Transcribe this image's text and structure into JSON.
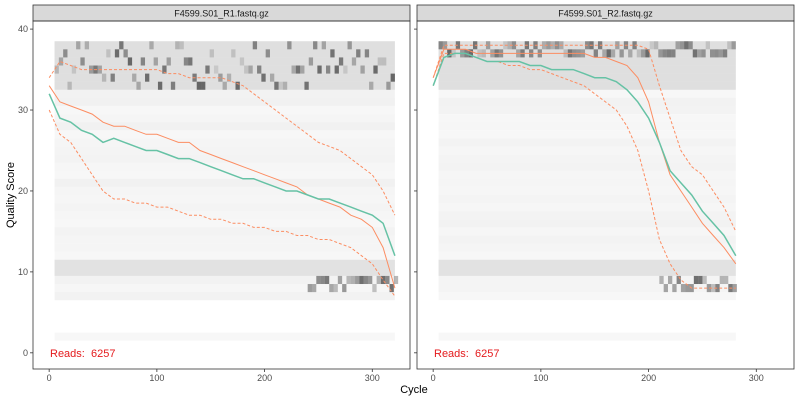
{
  "chart_data": {
    "type": "heatmap",
    "xlabel": "Cycle",
    "ylabel": "Quality Score",
    "xlim": [
      -15,
      335
    ],
    "ylim": [
      -2,
      41
    ],
    "x_ticks": [
      0,
      100,
      200,
      300
    ],
    "y_ticks": [
      0,
      10,
      20,
      30,
      40
    ],
    "colors": {
      "mean": "#66c2a5",
      "quartiles": "#fc8d62",
      "reads": "#e41a1c",
      "strip_fill": "#d9d9d9"
    },
    "panels": [
      {
        "title": "F4599.S01_R1.fastq.gz",
        "reads_label": "Reads:",
        "reads_value": "6257",
        "max_cycle": 321,
        "mean_quality": [
          [
            0,
            32
          ],
          [
            10,
            29
          ],
          [
            20,
            28.5
          ],
          [
            30,
            27.5
          ],
          [
            40,
            27
          ],
          [
            50,
            26
          ],
          [
            60,
            26.5
          ],
          [
            70,
            26
          ],
          [
            80,
            25.5
          ],
          [
            90,
            25
          ],
          [
            100,
            25
          ],
          [
            110,
            24.5
          ],
          [
            120,
            24
          ],
          [
            130,
            24
          ],
          [
            140,
            23.5
          ],
          [
            150,
            23
          ],
          [
            160,
            22.5
          ],
          [
            170,
            22
          ],
          [
            180,
            21.5
          ],
          [
            190,
            21.5
          ],
          [
            200,
            21
          ],
          [
            210,
            20.5
          ],
          [
            220,
            20
          ],
          [
            230,
            20
          ],
          [
            240,
            19.5
          ],
          [
            250,
            19
          ],
          [
            260,
            19
          ],
          [
            270,
            18.5
          ],
          [
            280,
            18
          ],
          [
            290,
            17.5
          ],
          [
            300,
            17
          ],
          [
            310,
            16
          ],
          [
            321,
            12
          ]
        ],
        "median_quality": [
          [
            0,
            33
          ],
          [
            10,
            31
          ],
          [
            20,
            30.5
          ],
          [
            30,
            30
          ],
          [
            40,
            29.5
          ],
          [
            50,
            28.5
          ],
          [
            60,
            28
          ],
          [
            70,
            28
          ],
          [
            80,
            27.5
          ],
          [
            90,
            27
          ],
          [
            100,
            27
          ],
          [
            110,
            26.5
          ],
          [
            120,
            26
          ],
          [
            130,
            26
          ],
          [
            140,
            25
          ],
          [
            150,
            24.5
          ],
          [
            160,
            24
          ],
          [
            170,
            23.5
          ],
          [
            180,
            23
          ],
          [
            190,
            22.5
          ],
          [
            200,
            22
          ],
          [
            210,
            21.5
          ],
          [
            220,
            21
          ],
          [
            230,
            20.5
          ],
          [
            240,
            19.5
          ],
          [
            250,
            19
          ],
          [
            260,
            18.5
          ],
          [
            270,
            18
          ],
          [
            280,
            17
          ],
          [
            290,
            16.5
          ],
          [
            300,
            15.5
          ],
          [
            310,
            13
          ],
          [
            321,
            8
          ]
        ],
        "q25_quality": [
          [
            0,
            30
          ],
          [
            10,
            27
          ],
          [
            20,
            26
          ],
          [
            30,
            24
          ],
          [
            40,
            22
          ],
          [
            50,
            20
          ],
          [
            60,
            19
          ],
          [
            70,
            19
          ],
          [
            80,
            18.5
          ],
          [
            90,
            18.5
          ],
          [
            100,
            18
          ],
          [
            110,
            18
          ],
          [
            120,
            17.5
          ],
          [
            130,
            17
          ],
          [
            140,
            17
          ],
          [
            150,
            16.5
          ],
          [
            160,
            16.5
          ],
          [
            170,
            16
          ],
          [
            180,
            16
          ],
          [
            190,
            15.5
          ],
          [
            200,
            15.5
          ],
          [
            210,
            15
          ],
          [
            220,
            15
          ],
          [
            230,
            14.5
          ],
          [
            240,
            14.5
          ],
          [
            250,
            14
          ],
          [
            260,
            14
          ],
          [
            270,
            13.5
          ],
          [
            280,
            13
          ],
          [
            290,
            12
          ],
          [
            300,
            11
          ],
          [
            310,
            9
          ],
          [
            321,
            7
          ]
        ],
        "q75_quality": [
          [
            0,
            34
          ],
          [
            10,
            36
          ],
          [
            20,
            35.5
          ],
          [
            30,
            35
          ],
          [
            40,
            35
          ],
          [
            50,
            35
          ],
          [
            60,
            35
          ],
          [
            70,
            35
          ],
          [
            80,
            35
          ],
          [
            90,
            35
          ],
          [
            100,
            35
          ],
          [
            110,
            34.5
          ],
          [
            120,
            34.5
          ],
          [
            130,
            34
          ],
          [
            140,
            34
          ],
          [
            150,
            34
          ],
          [
            160,
            34
          ],
          [
            170,
            33.5
          ],
          [
            180,
            33
          ],
          [
            190,
            32
          ],
          [
            200,
            31
          ],
          [
            210,
            30
          ],
          [
            220,
            29
          ],
          [
            230,
            28
          ],
          [
            240,
            27
          ],
          [
            250,
            26
          ],
          [
            260,
            25.5
          ],
          [
            270,
            25
          ],
          [
            280,
            24
          ],
          [
            290,
            23
          ],
          [
            300,
            22
          ],
          [
            310,
            20
          ],
          [
            321,
            17
          ]
        ]
      },
      {
        "title": "F4599.S01_R2.fastq.gz",
        "reads_label": "Reads:",
        "reads_value": "6257",
        "max_cycle": 281,
        "mean_quality": [
          [
            0,
            33
          ],
          [
            10,
            36.5
          ],
          [
            20,
            37
          ],
          [
            30,
            37
          ],
          [
            40,
            36.5
          ],
          [
            50,
            36
          ],
          [
            60,
            36
          ],
          [
            70,
            36
          ],
          [
            80,
            36
          ],
          [
            90,
            35.5
          ],
          [
            100,
            35.5
          ],
          [
            110,
            35
          ],
          [
            120,
            35
          ],
          [
            130,
            35
          ],
          [
            140,
            34.5
          ],
          [
            150,
            34
          ],
          [
            160,
            34
          ],
          [
            170,
            33.5
          ],
          [
            180,
            32.5
          ],
          [
            190,
            31
          ],
          [
            200,
            29
          ],
          [
            210,
            26
          ],
          [
            220,
            22.5
          ],
          [
            230,
            21
          ],
          [
            240,
            19.5
          ],
          [
            250,
            17.5
          ],
          [
            260,
            16
          ],
          [
            270,
            14.5
          ],
          [
            281,
            12
          ]
        ],
        "median_quality": [
          [
            0,
            34
          ],
          [
            10,
            37.5
          ],
          [
            20,
            37.5
          ],
          [
            30,
            37.5
          ],
          [
            40,
            37
          ],
          [
            50,
            37
          ],
          [
            60,
            37
          ],
          [
            70,
            37
          ],
          [
            80,
            37
          ],
          [
            90,
            37
          ],
          [
            100,
            37
          ],
          [
            110,
            37
          ],
          [
            120,
            37
          ],
          [
            130,
            37
          ],
          [
            140,
            37
          ],
          [
            150,
            36.5
          ],
          [
            160,
            36.5
          ],
          [
            170,
            36
          ],
          [
            180,
            35.5
          ],
          [
            190,
            34
          ],
          [
            200,
            31
          ],
          [
            210,
            26
          ],
          [
            220,
            22
          ],
          [
            230,
            20
          ],
          [
            240,
            18
          ],
          [
            250,
            16
          ],
          [
            260,
            14.5
          ],
          [
            270,
            13
          ],
          [
            281,
            11
          ]
        ],
        "q25_quality": [
          [
            0,
            33
          ],
          [
            10,
            37
          ],
          [
            20,
            37
          ],
          [
            30,
            37
          ],
          [
            40,
            36.5
          ],
          [
            50,
            36
          ],
          [
            60,
            36
          ],
          [
            70,
            35.5
          ],
          [
            80,
            35.5
          ],
          [
            90,
            35
          ],
          [
            100,
            35
          ],
          [
            110,
            34.5
          ],
          [
            120,
            34
          ],
          [
            130,
            33.5
          ],
          [
            140,
            33
          ],
          [
            150,
            32
          ],
          [
            160,
            31
          ],
          [
            170,
            30
          ],
          [
            180,
            28
          ],
          [
            190,
            25
          ],
          [
            200,
            20
          ],
          [
            210,
            14
          ],
          [
            220,
            11
          ],
          [
            230,
            9
          ],
          [
            240,
            8
          ],
          [
            250,
            8
          ],
          [
            260,
            8
          ],
          [
            270,
            8
          ],
          [
            281,
            8
          ]
        ],
        "q75_quality": [
          [
            0,
            34
          ],
          [
            10,
            38
          ],
          [
            20,
            38
          ],
          [
            30,
            38
          ],
          [
            40,
            38
          ],
          [
            50,
            38
          ],
          [
            60,
            38
          ],
          [
            70,
            38
          ],
          [
            80,
            38
          ],
          [
            90,
            38
          ],
          [
            100,
            38
          ],
          [
            110,
            38
          ],
          [
            120,
            38
          ],
          [
            130,
            38
          ],
          [
            140,
            38
          ],
          [
            150,
            38
          ],
          [
            160,
            38
          ],
          [
            170,
            38
          ],
          [
            180,
            38
          ],
          [
            190,
            38
          ],
          [
            200,
            37.5
          ],
          [
            210,
            33
          ],
          [
            220,
            29
          ],
          [
            230,
            25
          ],
          [
            240,
            23
          ],
          [
            250,
            22
          ],
          [
            260,
            20
          ],
          [
            270,
            18
          ],
          [
            281,
            15
          ]
        ]
      }
    ]
  }
}
